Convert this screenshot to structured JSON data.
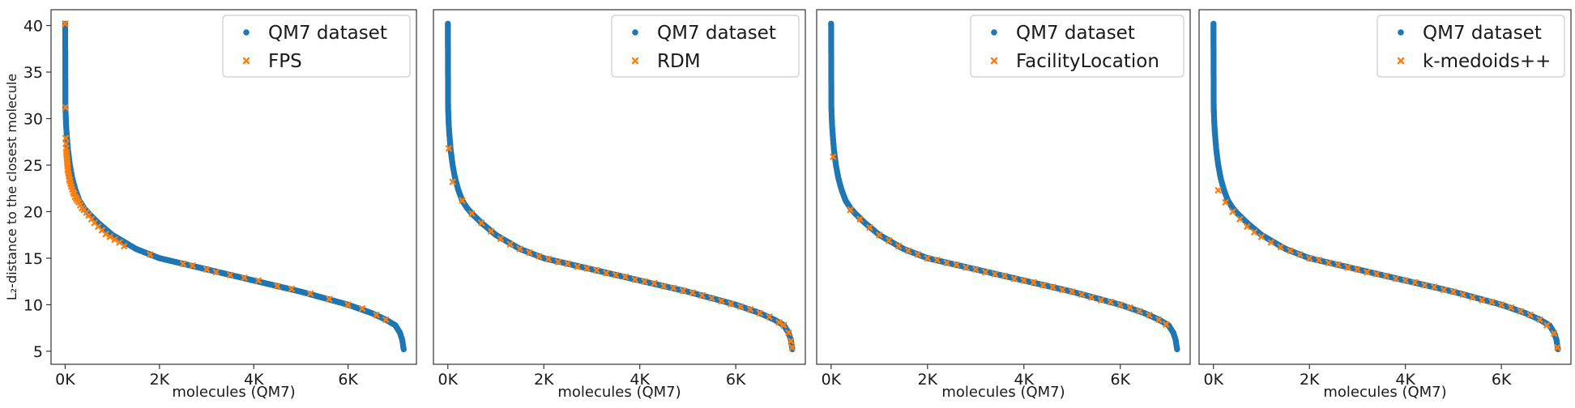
{
  "colors": {
    "dataset": "#1f77b4",
    "selected": "#ff7f0e",
    "frame": "#333333"
  },
  "chart_data": [
    {
      "type": "scatter",
      "xlabel": "molecules (QM7)",
      "ylabel": "L₂-distance to the closest molecule",
      "xlim": [
        -300,
        7450
      ],
      "ylim": [
        3.6,
        41.7
      ],
      "xticks": [
        0,
        2000,
        4000,
        6000
      ],
      "xtick_labels": [
        "0K",
        "2K",
        "4K",
        "6K"
      ],
      "yticks": [
        5,
        10,
        15,
        20,
        25,
        30,
        35,
        40
      ],
      "ytick_labels": [
        "5",
        "10",
        "15",
        "20",
        "25",
        "30",
        "35",
        "40"
      ],
      "legend_placement": "top-right",
      "series": [
        {
          "name": "QM7 dataset",
          "marker": "circle"
        },
        {
          "name": "FPS",
          "marker": "x"
        }
      ],
      "dataset_curve": [
        [
          0,
          40.2
        ],
        [
          5,
          31.2
        ],
        [
          20,
          29.2
        ],
        [
          40,
          27.8
        ],
        [
          60,
          26.6
        ],
        [
          100,
          25.0
        ],
        [
          150,
          23.6
        ],
        [
          220,
          22.3
        ],
        [
          300,
          21.2
        ],
        [
          400,
          20.4
        ],
        [
          500,
          19.8
        ],
        [
          700,
          18.8
        ],
        [
          1000,
          17.5
        ],
        [
          1500,
          16.0
        ],
        [
          2000,
          15.0
        ],
        [
          2500,
          14.4
        ],
        [
          3000,
          13.8
        ],
        [
          3500,
          13.2
        ],
        [
          4000,
          12.6
        ],
        [
          4500,
          12.0
        ],
        [
          5000,
          11.4
        ],
        [
          5500,
          10.7
        ],
        [
          6000,
          10.0
        ],
        [
          6500,
          9.1
        ],
        [
          6800,
          8.4
        ],
        [
          7000,
          7.8
        ],
        [
          7100,
          7.0
        ],
        [
          7150,
          6.2
        ],
        [
          7170,
          5.5
        ],
        [
          7180,
          5.2
        ]
      ],
      "selected_points": [
        [
          0,
          40.2
        ],
        [
          5,
          31.2
        ],
        [
          10,
          27.9
        ],
        [
          15,
          27.3
        ],
        [
          20,
          26.8
        ],
        [
          25,
          26.4
        ],
        [
          30,
          26.1
        ],
        [
          35,
          25.8
        ],
        [
          40,
          25.5
        ],
        [
          45,
          25.2
        ],
        [
          50,
          24.9
        ],
        [
          55,
          24.6
        ],
        [
          60,
          24.4
        ],
        [
          70,
          24.1
        ],
        [
          80,
          23.8
        ],
        [
          90,
          23.5
        ],
        [
          100,
          23.3
        ],
        [
          115,
          23.0
        ],
        [
          130,
          22.7
        ],
        [
          150,
          22.4
        ],
        [
          170,
          22.1
        ],
        [
          190,
          21.9
        ],
        [
          210,
          21.6
        ],
        [
          235,
          21.4
        ],
        [
          260,
          21.2
        ],
        [
          290,
          21.0
        ],
        [
          320,
          20.7
        ],
        [
          360,
          20.4
        ],
        [
          400,
          20.2
        ],
        [
          450,
          19.9
        ],
        [
          500,
          19.6
        ],
        [
          560,
          19.2
        ],
        [
          620,
          18.8
        ],
        [
          700,
          18.4
        ],
        [
          780,
          18.0
        ],
        [
          860,
          17.6
        ],
        [
          950,
          17.3
        ],
        [
          1050,
          17.0
        ],
        [
          1150,
          16.7
        ],
        [
          1250,
          16.3
        ],
        [
          1800,
          15.4
        ],
        [
          2500,
          14.4
        ],
        [
          2700,
          14.2
        ],
        [
          3000,
          13.8
        ],
        [
          3200,
          13.5
        ],
        [
          3500,
          13.2
        ],
        [
          3800,
          12.9
        ],
        [
          4100,
          12.6
        ],
        [
          4500,
          12.0
        ],
        [
          4800,
          11.7
        ],
        [
          5200,
          11.2
        ],
        [
          5600,
          10.6
        ],
        [
          6000,
          10.0
        ],
        [
          6300,
          9.6
        ],
        [
          6600,
          8.9
        ],
        [
          6800,
          8.4
        ]
      ]
    },
    {
      "type": "scatter",
      "xlabel": "molecules (QM7)",
      "xlim": [
        -300,
        7450
      ],
      "ylim": [
        3.6,
        41.7
      ],
      "xticks": [
        0,
        2000,
        4000,
        6000
      ],
      "xtick_labels": [
        "0K",
        "2K",
        "4K",
        "6K"
      ],
      "legend_placement": "top-right",
      "series": [
        {
          "name": "QM7 dataset",
          "marker": "circle"
        },
        {
          "name": "RDM",
          "marker": "x"
        }
      ],
      "dataset_curve": [
        [
          0,
          40.2
        ],
        [
          5,
          31.2
        ],
        [
          20,
          29.2
        ],
        [
          40,
          27.8
        ],
        [
          60,
          26.6
        ],
        [
          100,
          25.0
        ],
        [
          150,
          23.6
        ],
        [
          220,
          22.3
        ],
        [
          300,
          21.2
        ],
        [
          400,
          20.4
        ],
        [
          500,
          19.8
        ],
        [
          700,
          18.8
        ],
        [
          1000,
          17.5
        ],
        [
          1500,
          16.0
        ],
        [
          2000,
          15.0
        ],
        [
          2500,
          14.4
        ],
        [
          3000,
          13.8
        ],
        [
          3500,
          13.2
        ],
        [
          4000,
          12.6
        ],
        [
          4500,
          12.0
        ],
        [
          5000,
          11.4
        ],
        [
          5500,
          10.7
        ],
        [
          6000,
          10.0
        ],
        [
          6500,
          9.1
        ],
        [
          6800,
          8.4
        ],
        [
          7000,
          7.8
        ],
        [
          7100,
          7.0
        ],
        [
          7150,
          6.2
        ],
        [
          7170,
          5.5
        ],
        [
          7180,
          5.2
        ]
      ],
      "selected_points": [
        [
          20,
          26.8
        ],
        [
          100,
          23.2
        ],
        [
          300,
          21.2
        ],
        [
          500,
          19.8
        ],
        [
          700,
          18.8
        ],
        [
          900,
          17.9
        ],
        [
          1100,
          17.1
        ],
        [
          1300,
          16.5
        ],
        [
          1500,
          16.0
        ],
        [
          1700,
          15.6
        ],
        [
          1900,
          15.2
        ],
        [
          2100,
          14.9
        ],
        [
          2300,
          14.6
        ],
        [
          2500,
          14.4
        ],
        [
          2700,
          14.1
        ],
        [
          2900,
          13.9
        ],
        [
          3100,
          13.7
        ],
        [
          3300,
          13.4
        ],
        [
          3500,
          13.2
        ],
        [
          3700,
          13.0
        ],
        [
          3900,
          12.7
        ],
        [
          4100,
          12.5
        ],
        [
          4300,
          12.3
        ],
        [
          4500,
          12.0
        ],
        [
          4700,
          11.8
        ],
        [
          4900,
          11.5
        ],
        [
          5100,
          11.3
        ],
        [
          5300,
          11.0
        ],
        [
          5500,
          10.7
        ],
        [
          5700,
          10.4
        ],
        [
          5900,
          10.1
        ],
        [
          6100,
          9.8
        ],
        [
          6300,
          9.5
        ],
        [
          6500,
          9.1
        ],
        [
          6700,
          8.7
        ],
        [
          6900,
          8.1
        ],
        [
          7000,
          7.8
        ],
        [
          7100,
          7.0
        ],
        [
          7150,
          6.1
        ],
        [
          7175,
          5.4
        ]
      ]
    },
    {
      "type": "scatter",
      "xlabel": "molecules (QM7)",
      "xlim": [
        -300,
        7450
      ],
      "ylim": [
        3.6,
        41.7
      ],
      "xticks": [
        0,
        2000,
        4000,
        6000
      ],
      "xtick_labels": [
        "0K",
        "2K",
        "4K",
        "6K"
      ],
      "legend_placement": "top-right",
      "series": [
        {
          "name": "QM7 dataset",
          "marker": "circle"
        },
        {
          "name": "FacilityLocation",
          "marker": "x"
        }
      ],
      "dataset_curve": [
        [
          0,
          40.2
        ],
        [
          5,
          31.2
        ],
        [
          20,
          29.2
        ],
        [
          40,
          27.8
        ],
        [
          60,
          26.6
        ],
        [
          100,
          25.0
        ],
        [
          150,
          23.6
        ],
        [
          220,
          22.3
        ],
        [
          300,
          21.2
        ],
        [
          400,
          20.4
        ],
        [
          500,
          19.8
        ],
        [
          700,
          18.8
        ],
        [
          1000,
          17.5
        ],
        [
          1500,
          16.0
        ],
        [
          2000,
          15.0
        ],
        [
          2500,
          14.4
        ],
        [
          3000,
          13.8
        ],
        [
          3500,
          13.2
        ],
        [
          4000,
          12.6
        ],
        [
          4500,
          12.0
        ],
        [
          5000,
          11.4
        ],
        [
          5500,
          10.7
        ],
        [
          6000,
          10.0
        ],
        [
          6500,
          9.1
        ],
        [
          6800,
          8.4
        ],
        [
          7000,
          7.8
        ],
        [
          7100,
          7.0
        ],
        [
          7150,
          6.2
        ],
        [
          7170,
          5.5
        ],
        [
          7180,
          5.2
        ]
      ],
      "selected_points": [
        [
          40,
          25.9
        ],
        [
          400,
          20.2
        ],
        [
          600,
          19.2
        ],
        [
          800,
          18.3
        ],
        [
          1000,
          17.5
        ],
        [
          1200,
          16.9
        ],
        [
          1400,
          16.3
        ],
        [
          1600,
          15.8
        ],
        [
          1800,
          15.4
        ],
        [
          2000,
          15.0
        ],
        [
          2200,
          14.8
        ],
        [
          2400,
          14.5
        ],
        [
          2600,
          14.3
        ],
        [
          2800,
          14.0
        ],
        [
          3000,
          13.8
        ],
        [
          3200,
          13.5
        ],
        [
          3400,
          13.3
        ],
        [
          3600,
          13.1
        ],
        [
          3800,
          12.8
        ],
        [
          4000,
          12.6
        ],
        [
          4200,
          12.4
        ],
        [
          4400,
          12.1
        ],
        [
          4600,
          11.9
        ],
        [
          4800,
          11.6
        ],
        [
          5000,
          11.4
        ],
        [
          5200,
          11.1
        ],
        [
          5400,
          10.8
        ],
        [
          5600,
          10.5
        ],
        [
          5800,
          10.3
        ],
        [
          6000,
          10.0
        ],
        [
          6200,
          9.7
        ],
        [
          6400,
          9.3
        ],
        [
          6600,
          8.9
        ],
        [
          6800,
          8.4
        ],
        [
          6950,
          7.9
        ]
      ]
    },
    {
      "type": "scatter",
      "xlabel": "molecules (QM7)",
      "xlim": [
        -300,
        7450
      ],
      "ylim": [
        3.6,
        41.7
      ],
      "xticks": [
        0,
        2000,
        4000,
        6000
      ],
      "xtick_labels": [
        "0K",
        "2K",
        "4K",
        "6K"
      ],
      "legend_placement": "top-right",
      "series": [
        {
          "name": "QM7 dataset",
          "marker": "circle"
        },
        {
          "name": "k-medoids++",
          "marker": "x"
        }
      ],
      "dataset_curve": [
        [
          0,
          40.2
        ],
        [
          5,
          31.2
        ],
        [
          20,
          29.2
        ],
        [
          40,
          27.8
        ],
        [
          60,
          26.6
        ],
        [
          100,
          25.0
        ],
        [
          150,
          23.6
        ],
        [
          220,
          22.3
        ],
        [
          300,
          21.2
        ],
        [
          400,
          20.4
        ],
        [
          500,
          19.8
        ],
        [
          700,
          18.8
        ],
        [
          1000,
          17.5
        ],
        [
          1500,
          16.0
        ],
        [
          2000,
          15.0
        ],
        [
          2500,
          14.4
        ],
        [
          3000,
          13.8
        ],
        [
          3500,
          13.2
        ],
        [
          4000,
          12.6
        ],
        [
          4500,
          12.0
        ],
        [
          5000,
          11.4
        ],
        [
          5500,
          10.7
        ],
        [
          6000,
          10.0
        ],
        [
          6500,
          9.1
        ],
        [
          6800,
          8.4
        ],
        [
          7000,
          7.8
        ],
        [
          7100,
          7.0
        ],
        [
          7150,
          6.2
        ],
        [
          7170,
          5.5
        ],
        [
          7180,
          5.2
        ]
      ],
      "selected_points": [
        [
          100,
          22.3
        ],
        [
          250,
          21.0
        ],
        [
          400,
          20.0
        ],
        [
          550,
          19.2
        ],
        [
          700,
          18.4
        ],
        [
          850,
          17.8
        ],
        [
          1000,
          17.3
        ],
        [
          1200,
          16.7
        ],
        [
          1400,
          16.2
        ],
        [
          1600,
          15.8
        ],
        [
          1800,
          15.4
        ],
        [
          2000,
          15.0
        ],
        [
          2200,
          14.8
        ],
        [
          2400,
          14.5
        ],
        [
          2600,
          14.3
        ],
        [
          2800,
          14.0
        ],
        [
          3000,
          13.8
        ],
        [
          3200,
          13.5
        ],
        [
          3400,
          13.3
        ],
        [
          3600,
          13.1
        ],
        [
          3800,
          12.8
        ],
        [
          4000,
          12.6
        ],
        [
          4200,
          12.4
        ],
        [
          4400,
          12.1
        ],
        [
          4600,
          11.9
        ],
        [
          4800,
          11.6
        ],
        [
          5000,
          11.4
        ],
        [
          5200,
          11.1
        ],
        [
          5400,
          10.8
        ],
        [
          5600,
          10.5
        ],
        [
          5800,
          10.3
        ],
        [
          6000,
          10.0
        ],
        [
          6200,
          9.7
        ],
        [
          6400,
          9.3
        ],
        [
          6600,
          8.9
        ],
        [
          6800,
          8.4
        ],
        [
          6950,
          7.8
        ],
        [
          7100,
          6.9
        ],
        [
          7170,
          5.4
        ]
      ]
    }
  ]
}
